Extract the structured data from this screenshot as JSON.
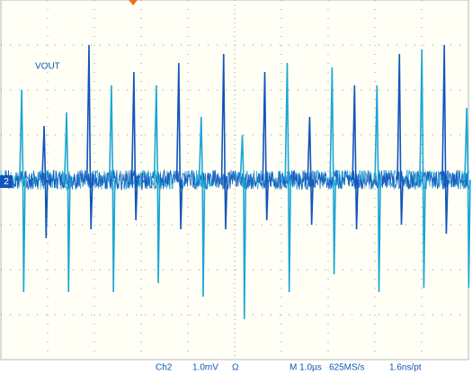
{
  "chart_data": {
    "type": "spikes",
    "trace_label": "VOUT",
    "channel_marker": "2",
    "status": [
      "Ch2",
      "1.0mV",
      "Ω",
      "M 1.0µs",
      "625MS/s",
      "1.6ns/pt"
    ],
    "xlim": [
      0,
      10
    ],
    "ylim": [
      -4,
      4
    ],
    "series": [
      {
        "name": "VOUT",
        "color": "#1aa6d6",
        "x": [
          0.46,
          0.94,
          1.42,
          1.9,
          2.38,
          2.86,
          3.34,
          3.82,
          4.3,
          4.78,
          5.18,
          5.66,
          6.14,
          6.62,
          7.1,
          7.58,
          8.06,
          8.54,
          9.02,
          9.5,
          9.98
        ],
        "peak": [
          2.0,
          1.2,
          1.5,
          3.0,
          2.1,
          2.4,
          2.1,
          2.6,
          1.4,
          2.8,
          1.0,
          2.4,
          2.6,
          1.4,
          2.5,
          2.1,
          2.1,
          2.8,
          2.9,
          3.0,
          1.6
        ],
        "trough": [
          -2.5,
          -1.3,
          -2.5,
          -1.1,
          -2.5,
          -0.9,
          -2.3,
          -1.1,
          -2.6,
          -1.1,
          -3.1,
          -0.9,
          -2.5,
          -1.0,
          -2.1,
          -1.1,
          -2.5,
          -1.0,
          -2.4,
          -1.2,
          -2.4
        ]
      }
    ],
    "grid": true
  }
}
